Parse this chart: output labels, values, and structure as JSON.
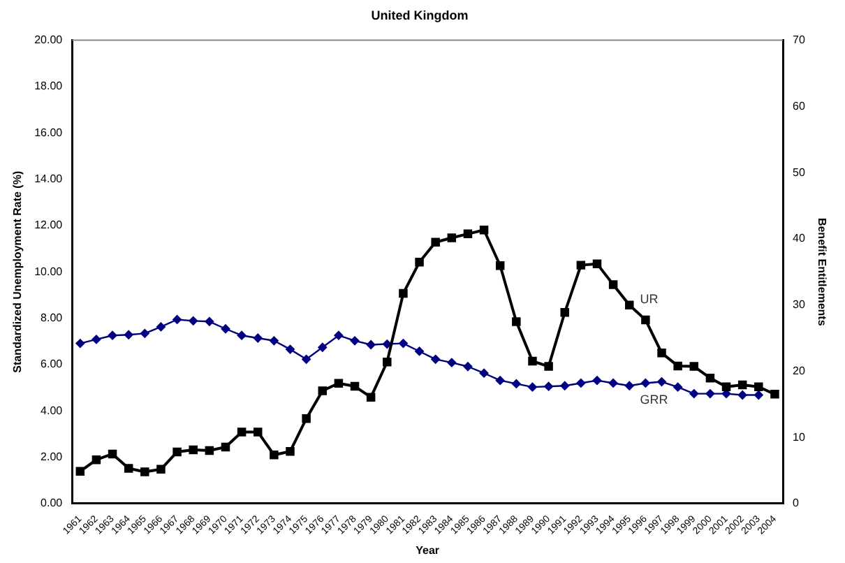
{
  "chart_data": {
    "type": "line",
    "title": "United Kingdom",
    "xlabel": "Year",
    "ylabel": "Standardized Unemployment Rate (%)",
    "y2label": "Benefit Entitlements",
    "categories": [
      "1961",
      "1962",
      "1963",
      "1964",
      "1965",
      "1966",
      "1967",
      "1968",
      "1969",
      "1970",
      "1971",
      "1972",
      "1973",
      "1974",
      "1975",
      "1976",
      "1977",
      "1978",
      "1979",
      "1980",
      "1981",
      "1982",
      "1983",
      "1984",
      "1985",
      "1986",
      "1987",
      "1988",
      "1989",
      "1990",
      "1991",
      "1992",
      "1993",
      "1994",
      "1995",
      "1996",
      "1997",
      "1998",
      "1999",
      "2000",
      "2001",
      "2002",
      "2003",
      "2004"
    ],
    "series": [
      {
        "name": "UR",
        "color": "#000000",
        "marker": "square",
        "values": [
          1.39,
          1.89,
          2.14,
          1.52,
          1.37,
          1.48,
          2.23,
          2.32,
          2.29,
          2.44,
          3.09,
          3.09,
          2.1,
          2.25,
          3.67,
          4.87,
          5.19,
          5.06,
          4.59,
          6.11,
          9.07,
          10.42,
          11.28,
          11.47,
          11.64,
          11.81,
          10.27,
          7.85,
          6.15,
          5.92,
          8.25,
          10.29,
          10.35,
          9.45,
          8.57,
          7.93,
          6.5,
          5.94,
          5.92,
          5.42,
          5.04,
          5.12,
          5.04,
          4.72
        ]
      },
      {
        "name": "GRR",
        "color": "#000080",
        "marker": "diamond",
        "axis": "y2",
        "values": [
          24.2,
          24.8,
          25.4,
          25.5,
          25.7,
          26.7,
          27.8,
          27.6,
          27.5,
          26.4,
          25.4,
          25.0,
          24.6,
          23.3,
          21.8,
          23.6,
          25.4,
          24.6,
          24.0,
          24.1,
          24.2,
          23.0,
          21.8,
          21.3,
          20.7,
          19.7,
          18.6,
          18.1,
          17.6,
          17.7,
          17.8,
          18.2,
          18.6,
          18.2,
          17.8,
          18.2,
          18.4,
          17.6,
          16.6,
          16.6,
          16.6,
          16.4,
          16.4,
          null
        ]
      }
    ],
    "ylim": [
      0,
      20
    ],
    "yticks": [
      {
        "value": 0,
        "label": "0.00"
      },
      {
        "value": 2,
        "label": "2.00"
      },
      {
        "value": 4,
        "label": "4.00"
      },
      {
        "value": 6,
        "label": "6.00"
      },
      {
        "value": 8,
        "label": "8.00"
      },
      {
        "value": 10,
        "label": "10.00"
      },
      {
        "value": 12,
        "label": "12.00"
      },
      {
        "value": 14,
        "label": "14.00"
      },
      {
        "value": 16,
        "label": "16.00"
      },
      {
        "value": 18,
        "label": "18.00"
      },
      {
        "value": 20,
        "label": "20.00"
      }
    ],
    "y2lim": [
      0,
      70
    ],
    "y2ticks": [
      0,
      10,
      20,
      30,
      40,
      50,
      60,
      70
    ],
    "grid": false,
    "legend": false,
    "line_style": "solid"
  }
}
